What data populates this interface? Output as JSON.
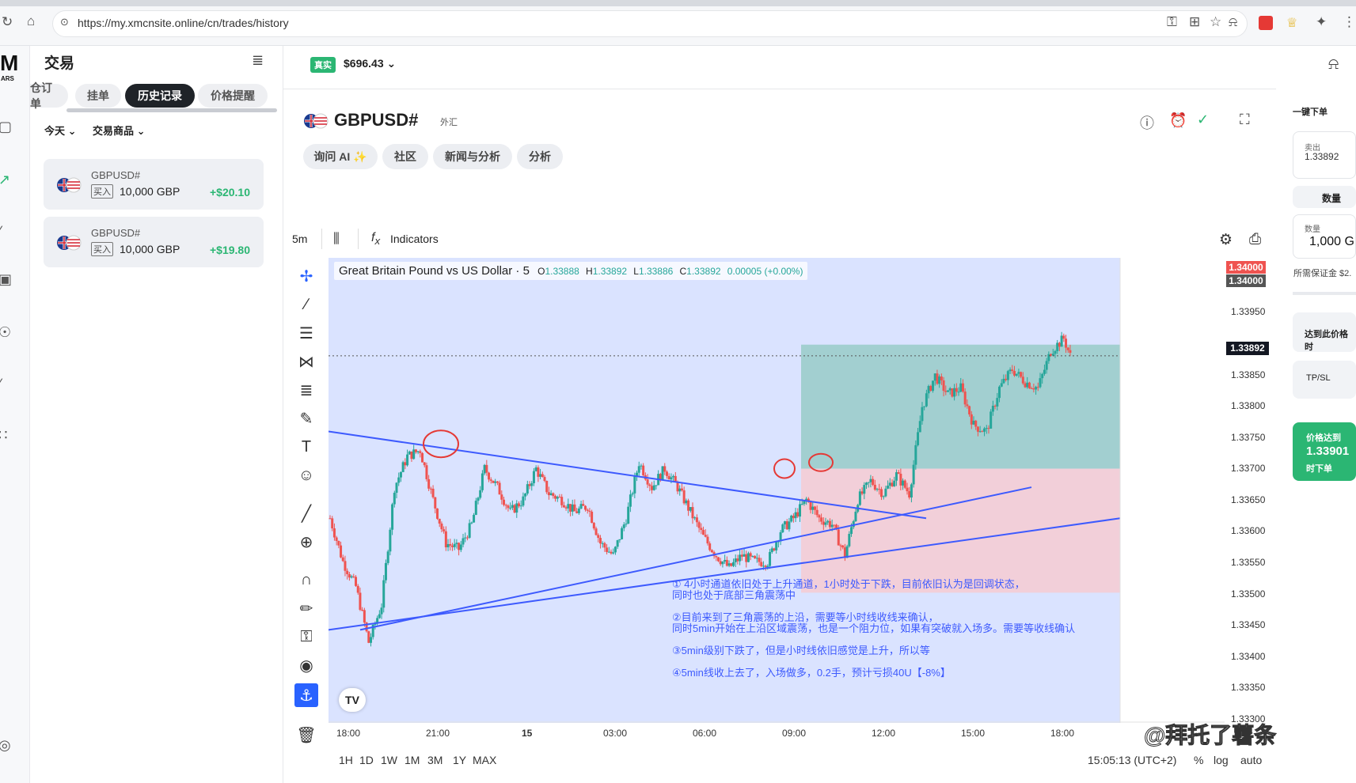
{
  "browser": {
    "url": "https://my.xmcnsite.online/cn/trades/history"
  },
  "brand": {
    "logo": "M",
    "sub": "ARS"
  },
  "sidebar": {
    "title": "交易",
    "tabs": [
      {
        "label": "仓订单"
      },
      {
        "label": "挂单"
      },
      {
        "label": "历史记录"
      },
      {
        "label": "价格提醒"
      }
    ],
    "filter_period": "今天",
    "filter_symbol": "交易商品",
    "positions": [
      {
        "symbol": "GBPUSD#",
        "side": "买入",
        "volume": "10,000 GBP",
        "pnl": "+$20.10"
      },
      {
        "symbol": "GBPUSD#",
        "side": "买入",
        "volume": "10,000 GBP",
        "pnl": "+$19.80"
      }
    ]
  },
  "header": {
    "account_tag": "真实",
    "balance": "$696.43"
  },
  "instrument": {
    "symbol": "GBPUSD#",
    "category": "外汇"
  },
  "pills": [
    {
      "label": "询问 AI"
    },
    {
      "label": "社区"
    },
    {
      "label": "新闻与分析"
    },
    {
      "label": "分析"
    }
  ],
  "toolbar": {
    "interval": "5m",
    "indicators": "Indicators"
  },
  "legend": {
    "name": "Great Britain Pound vs US Dollar · 5",
    "o_label": "O",
    "o": "1.33888",
    "h_label": "H",
    "h": "1.33892",
    "l_label": "L",
    "l": "1.33886",
    "c_label": "C",
    "c": "1.33892",
    "change": "0.00005 (+0.00%)"
  },
  "price_axis": {
    "labels": [
      "1.33950",
      "1.33850",
      "1.33800",
      "1.33750",
      "1.33700",
      "1.33650",
      "1.33600",
      "1.33550",
      "1.33500",
      "1.33450",
      "1.33400",
      "1.33350",
      "1.33300"
    ],
    "tag_red_top": "1.34000",
    "tag_red_bottom": "1.34000",
    "tag_current": "1.33892"
  },
  "time_axis": [
    "18:00",
    "21:00",
    "15",
    "03:00",
    "06:00",
    "09:00",
    "12:00",
    "15:00",
    "18:00"
  ],
  "annotations": {
    "n1": "①  4小时通道依旧处于上升通道，1小时处于下跌，目前依旧认为是回调状态，",
    "n1b": "同时也处于底部三角震荡中",
    "n2": "②目前来到了三角震荡的上沿，需要等小时线收线来确认，",
    "n2b": "同时5min开始在上沿区域震荡，也是一个阻力位，如果有突破就入场多。需要等收线确认",
    "n3": "③5min级别下跌了，但是小时线依旧感觉是上升，所以等",
    "n4": "④5min线收上去了，入场做多，0.2手，预计亏损40U【-8%】"
  },
  "bottom": {
    "ranges": [
      "1H",
      "1D",
      "1W",
      "1M",
      "3M",
      "1Y",
      "MAX"
    ],
    "clock": "15:05:13 (UTC+2)",
    "pct": "%",
    "log": "log",
    "auto": "auto"
  },
  "order_panel": {
    "title": "一键下单",
    "sell_label": "卖出",
    "sell_price": "1.33892",
    "qty_title": "数量",
    "qty_label": "数量",
    "qty_value": "1,000 G",
    "margin": "所需保证金 $2.",
    "reach_price": "达到此价格时",
    "tpsl": "TP/SL",
    "btn_line1": "价格达到",
    "btn_price": "1.33901",
    "btn_line3": "时下单"
  },
  "watermark": "@拜托了薯条",
  "chart_data": {
    "type": "candlestick",
    "symbol": "GBPUSD#",
    "interval": "5m",
    "x": [
      "18:00",
      "21:00",
      "15",
      "03:00",
      "06:00",
      "09:00",
      "12:00",
      "15:00",
      "18:00"
    ],
    "ylim": [
      1.333,
      1.3405
    ],
    "last_close": 1.33892,
    "close_path": [
      [
        0,
        1.3363
      ],
      [
        2,
        1.3356
      ],
      [
        4,
        1.3352
      ],
      [
        6,
        1.3343
      ],
      [
        8,
        1.3349
      ],
      [
        10,
        1.3368
      ],
      [
        12,
        1.3373
      ],
      [
        14,
        1.3374
      ],
      [
        16,
        1.3366
      ],
      [
        18,
        1.3359
      ],
      [
        20,
        1.3358
      ],
      [
        22,
        1.3362
      ],
      [
        24,
        1.3371
      ],
      [
        26,
        1.3368
      ],
      [
        28,
        1.3364
      ],
      [
        30,
        1.3366
      ],
      [
        32,
        1.3371
      ],
      [
        34,
        1.3367
      ],
      [
        36,
        1.3366
      ],
      [
        38,
        1.3364
      ],
      [
        40,
        1.3365
      ],
      [
        42,
        1.3359
      ],
      [
        44,
        1.3357
      ],
      [
        46,
        1.3363
      ],
      [
        48,
        1.3372
      ],
      [
        50,
        1.3368
      ],
      [
        52,
        1.3371
      ],
      [
        54,
        1.3368
      ],
      [
        56,
        1.3364
      ],
      [
        58,
        1.336
      ],
      [
        60,
        1.3357
      ],
      [
        62,
        1.3355
      ],
      [
        64,
        1.3357
      ],
      [
        66,
        1.3356
      ],
      [
        68,
        1.3356
      ],
      [
        70,
        1.3361
      ],
      [
        72,
        1.3363
      ],
      [
        74,
        1.3366
      ],
      [
        76,
        1.3363
      ],
      [
        78,
        1.3362
      ],
      [
        80,
        1.3357
      ],
      [
        82,
        1.3366
      ],
      [
        84,
        1.3369
      ],
      [
        86,
        1.3367
      ],
      [
        88,
        1.337
      ],
      [
        90,
        1.3367
      ],
      [
        92,
        1.3381
      ],
      [
        94,
        1.3386
      ],
      [
        96,
        1.3383
      ],
      [
        98,
        1.3384
      ],
      [
        100,
        1.3378
      ],
      [
        102,
        1.3377
      ],
      [
        104,
        1.3384
      ],
      [
        106,
        1.3387
      ],
      [
        108,
        1.3385
      ],
      [
        110,
        1.3384
      ],
      [
        112,
        1.339
      ],
      [
        114,
        1.3392
      ],
      [
        115,
        1.33892
      ]
    ]
  },
  "colors": {
    "up": "#26a69a",
    "down": "#ef5350",
    "trend": "#3d5afe",
    "zone_bg": "#d6e0ff",
    "tp": "#8fc8c0",
    "sl": "#f7c9cf",
    "accent": "#2bb673"
  }
}
